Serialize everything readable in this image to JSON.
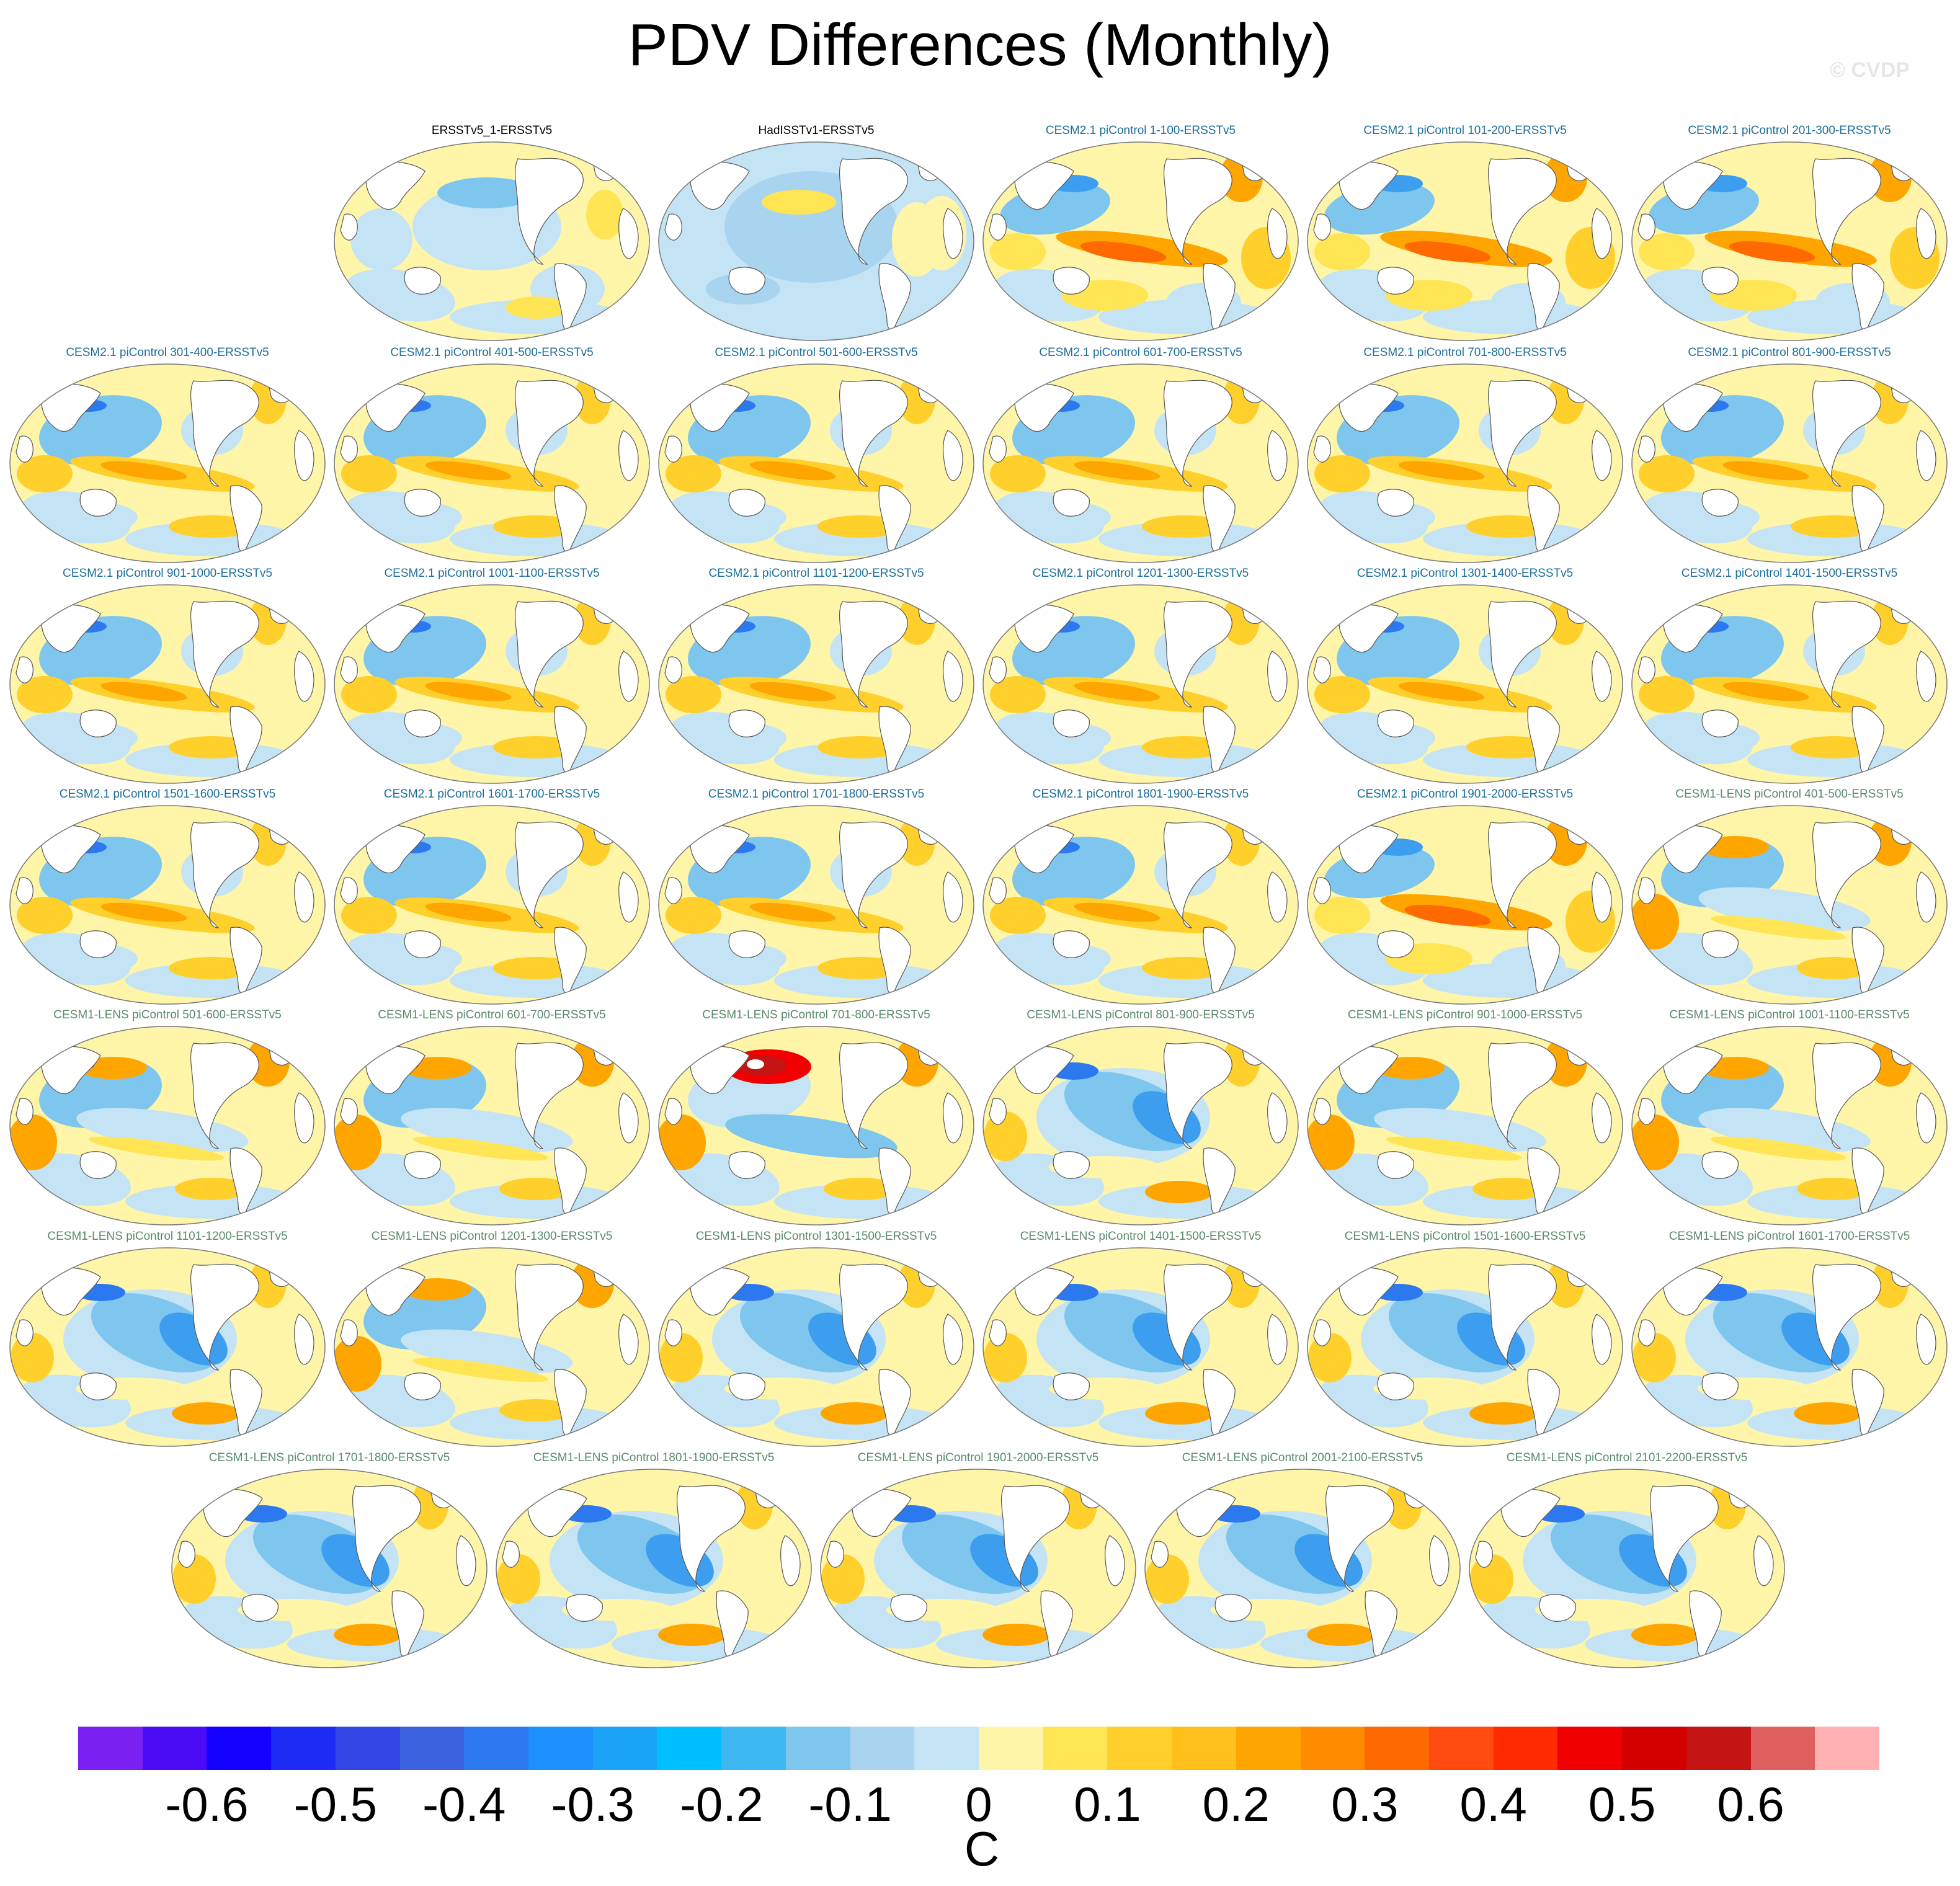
{
  "title": "PDV Differences (Monthly)",
  "copyright": "© CVDP",
  "colorbar": {
    "units": "C",
    "ticks": [
      "-0.6",
      "-0.5",
      "-0.4",
      "-0.3",
      "-0.2",
      "-0.1",
      "0",
      "0.1",
      "0.2",
      "0.3",
      "0.4",
      "0.5",
      "0.6"
    ],
    "colors": [
      "#7b20f2",
      "#4b0cf5",
      "#1400ff",
      "#1d2cf5",
      "#3347e6",
      "#3d62e0",
      "#2c79ef",
      "#1e90ff",
      "#1aa3f7",
      "#00bfff",
      "#3db8f0",
      "#7ec6ee",
      "#a8d4f0",
      "#c4e4f5",
      "#fff5a8",
      "#ffe454",
      "#ffd02c",
      "#ffc01c",
      "#ffa500",
      "#ff8c00",
      "#ff6a00",
      "#ff4a10",
      "#ff2a00",
      "#f00000",
      "#d40000",
      "#c41414",
      "#e06060",
      "#ffb0b0"
    ]
  },
  "panels": [
    {
      "title": "ERSSTv5_1-ERSSTv5",
      "color": "#000000",
      "pattern": "obs"
    },
    {
      "title": "HadISSTv1-ERSSTv5",
      "color": "#000000",
      "pattern": "had"
    },
    {
      "title": "CESM2.1 piControl 1-100-ERSSTv5",
      "color": "#1a6e9a",
      "pattern": "warm"
    },
    {
      "title": "CESM2.1 piControl 101-200-ERSSTv5",
      "color": "#1a6e9a",
      "pattern": "warm"
    },
    {
      "title": "CESM2.1 piControl 201-300-ERSSTv5",
      "color": "#1a6e9a",
      "pattern": "warm"
    },
    {
      "title": "CESM2.1 piControl 301-400-ERSSTv5",
      "color": "#1a6e9a",
      "pattern": "cesm2"
    },
    {
      "title": "CESM2.1 piControl 401-500-ERSSTv5",
      "color": "#1a6e9a",
      "pattern": "cesm2"
    },
    {
      "title": "CESM2.1 piControl 501-600-ERSSTv5",
      "color": "#1a6e9a",
      "pattern": "cesm2"
    },
    {
      "title": "CESM2.1 piControl 601-700-ERSSTv5",
      "color": "#1a6e9a",
      "pattern": "cesm2"
    },
    {
      "title": "CESM2.1 piControl 701-800-ERSSTv5",
      "color": "#1a6e9a",
      "pattern": "cesm2"
    },
    {
      "title": "CESM2.1 piControl 801-900-ERSSTv5",
      "color": "#1a6e9a",
      "pattern": "cesm2"
    },
    {
      "title": "CESM2.1 piControl 901-1000-ERSSTv5",
      "color": "#1a6e9a",
      "pattern": "cesm2"
    },
    {
      "title": "CESM2.1 piControl 1001-1100-ERSSTv5",
      "color": "#1a6e9a",
      "pattern": "cesm2"
    },
    {
      "title": "CESM2.1 piControl 1101-1200-ERSSTv5",
      "color": "#1a6e9a",
      "pattern": "cesm2"
    },
    {
      "title": "CESM2.1 piControl 1201-1300-ERSSTv5",
      "color": "#1a6e9a",
      "pattern": "cesm2"
    },
    {
      "title": "CESM2.1 piControl 1301-1400-ERSSTv5",
      "color": "#1a6e9a",
      "pattern": "cesm2"
    },
    {
      "title": "CESM2.1 piControl 1401-1500-ERSSTv5",
      "color": "#1a6e9a",
      "pattern": "cesm2"
    },
    {
      "title": "CESM2.1 piControl 1501-1600-ERSSTv5",
      "color": "#1a6e9a",
      "pattern": "cesm2"
    },
    {
      "title": "CESM2.1 piControl 1601-1700-ERSSTv5",
      "color": "#1a6e9a",
      "pattern": "cesm2"
    },
    {
      "title": "CESM2.1 piControl 1701-1800-ERSSTv5",
      "color": "#1a6e9a",
      "pattern": "cesm2"
    },
    {
      "title": "CESM2.1 piControl 1801-1900-ERSSTv5",
      "color": "#1a6e9a",
      "pattern": "cesm2"
    },
    {
      "title": "CESM2.1 piControl 1901-2000-ERSSTv5",
      "color": "#1a6e9a",
      "pattern": "warm"
    },
    {
      "title": "CESM1-LENS piControl 401-500-ERSSTv5",
      "color": "#5a8a6a",
      "pattern": "lens"
    },
    {
      "title": "CESM1-LENS piControl 501-600-ERSSTv5",
      "color": "#5a8a6a",
      "pattern": "lens"
    },
    {
      "title": "CESM1-LENS piControl 601-700-ERSSTv5",
      "color": "#5a8a6a",
      "pattern": "lens"
    },
    {
      "title": "CESM1-LENS piControl 701-800-ERSSTv5",
      "color": "#5a8a6a",
      "pattern": "hot"
    },
    {
      "title": "CESM1-LENS piControl 801-900-ERSSTv5",
      "color": "#5a8a6a",
      "pattern": "cold"
    },
    {
      "title": "CESM1-LENS piControl 901-1000-ERSSTv5",
      "color": "#5a8a6a",
      "pattern": "lens"
    },
    {
      "title": "CESM1-LENS piControl 1001-1100-ERSSTv5",
      "color": "#5a8a6a",
      "pattern": "lens"
    },
    {
      "title": "CESM1-LENS piControl 1101-1200-ERSSTv5",
      "color": "#5a8a6a",
      "pattern": "cold"
    },
    {
      "title": "CESM1-LENS piControl 1201-1300-ERSSTv5",
      "color": "#5a8a6a",
      "pattern": "lens"
    },
    {
      "title": "CESM1-LENS piControl 1301-1500-ERSSTv5",
      "color": "#5a8a6a",
      "pattern": "cold"
    },
    {
      "title": "CESM1-LENS piControl 1401-1500-ERSSTv5",
      "color": "#5a8a6a",
      "pattern": "cold"
    },
    {
      "title": "CESM1-LENS piControl 1501-1600-ERSSTv5",
      "color": "#5a8a6a",
      "pattern": "cold"
    },
    {
      "title": "CESM1-LENS piControl 1601-1700-ERSSTv5",
      "color": "#5a8a6a",
      "pattern": "cold"
    },
    {
      "title": "CESM1-LENS piControl 1701-1800-ERSSTv5",
      "color": "#5a8a6a",
      "pattern": "cold"
    },
    {
      "title": "CESM1-LENS piControl 1801-1900-ERSSTv5",
      "color": "#5a8a6a",
      "pattern": "cold"
    },
    {
      "title": "CESM1-LENS piControl 1901-2000-ERSSTv5",
      "color": "#5a8a6a",
      "pattern": "cold"
    },
    {
      "title": "CESM1-LENS piControl 2001-2100-ERSSTv5",
      "color": "#5a8a6a",
      "pattern": "cold"
    },
    {
      "title": "CESM1-LENS piControl 2101-2200-ERSSTv5",
      "color": "#5a8a6a",
      "pattern": "cold"
    }
  ]
}
